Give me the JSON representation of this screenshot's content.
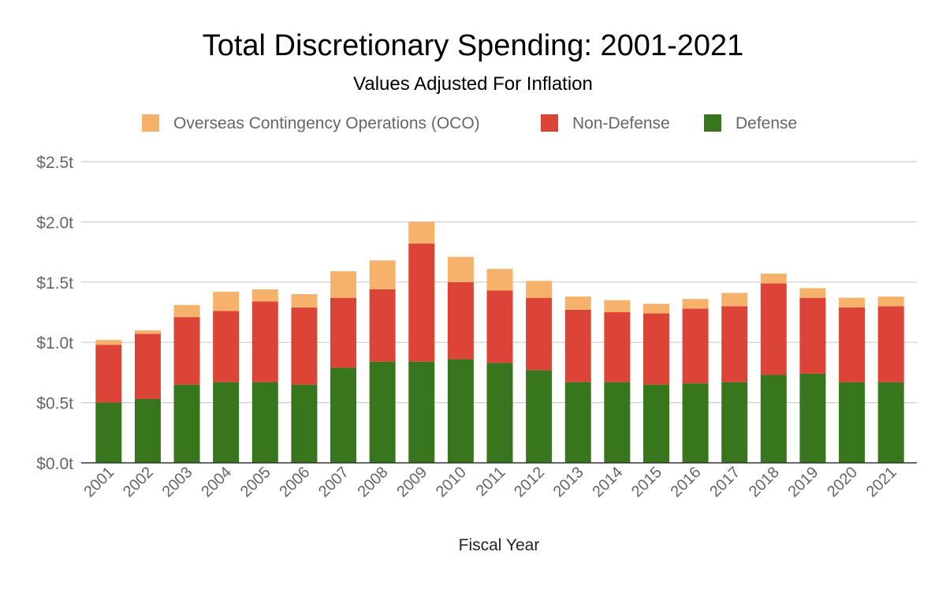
{
  "chart_data": {
    "type": "bar",
    "stacked": true,
    "title": "Total Discretionary Spending: 2001-2021",
    "subtitle": "Values Adjusted For Inflation",
    "xlabel": "Fiscal Year",
    "ylabel": "",
    "ylim": [
      0,
      2.5
    ],
    "yticks": [
      0,
      0.5,
      1.0,
      1.5,
      2.0,
      2.5
    ],
    "ytick_labels": [
      "$0.0t",
      "$0.5t",
      "$1.0t",
      "$1.5t",
      "$2.0t",
      "$2.5t"
    ],
    "grid": true,
    "legend_position": "top",
    "categories": [
      "2001",
      "2002",
      "2003",
      "2004",
      "2005",
      "2006",
      "2007",
      "2008",
      "2009",
      "2010",
      "2011",
      "2012",
      "2013",
      "2014",
      "2015",
      "2016",
      "2017",
      "2018",
      "2019",
      "2020",
      "2021"
    ],
    "series": [
      {
        "name": "Defense",
        "color": "#38761d",
        "values": [
          0.5,
          0.53,
          0.65,
          0.67,
          0.67,
          0.65,
          0.79,
          0.84,
          0.84,
          0.86,
          0.83,
          0.77,
          0.67,
          0.67,
          0.65,
          0.66,
          0.67,
          0.73,
          0.74,
          0.67,
          0.67
        ]
      },
      {
        "name": "Non-Defense",
        "color": "#db4437",
        "values": [
          0.48,
          0.54,
          0.56,
          0.59,
          0.67,
          0.64,
          0.58,
          0.6,
          0.98,
          0.64,
          0.6,
          0.6,
          0.6,
          0.58,
          0.59,
          0.62,
          0.63,
          0.76,
          0.63,
          0.62,
          0.63
        ]
      },
      {
        "name": "Overseas Contingency Operations (OCO)",
        "color": "#f6b26b",
        "values": [
          0.04,
          0.03,
          0.1,
          0.16,
          0.1,
          0.11,
          0.22,
          0.24,
          0.18,
          0.21,
          0.18,
          0.14,
          0.11,
          0.1,
          0.08,
          0.08,
          0.11,
          0.08,
          0.08,
          0.08,
          0.08
        ]
      }
    ],
    "legend_order": [
      2,
      1,
      0
    ]
  }
}
